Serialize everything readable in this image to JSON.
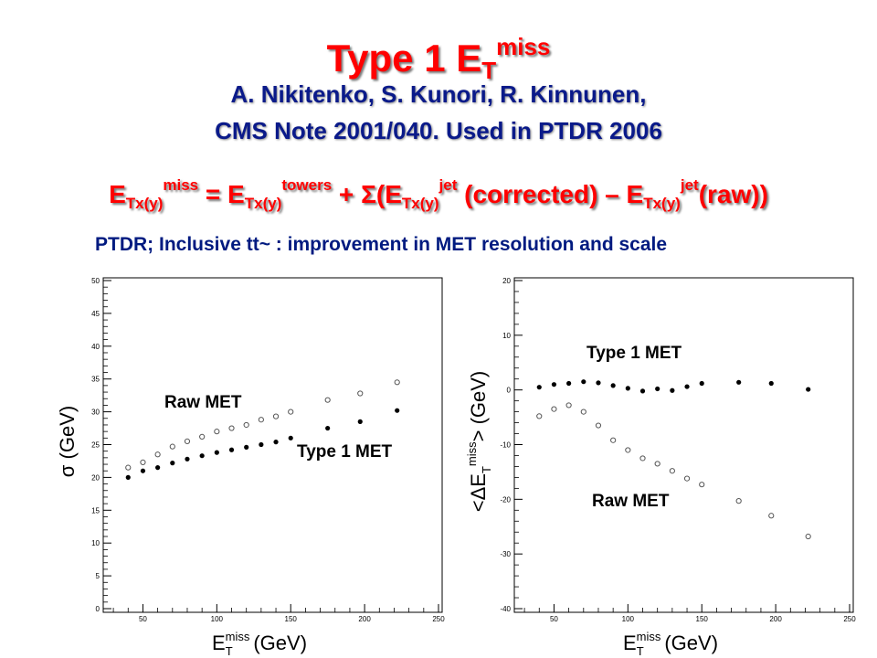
{
  "slide": {
    "title_main": "Type 1 E",
    "title_sub": "T",
    "title_sup": "miss",
    "author_line1": "A. Nikitenko, S. Kunori, R. Kinnunen,",
    "author_line2": "CMS Note 2001/040. Used in PTDR 2006",
    "formula": {
      "e": "E",
      "sub": "Tx(y)",
      "miss": "miss",
      "eq": " = E",
      "towers": "towers",
      "plus_sum": " + ",
      "sigma": "Σ",
      "open": "(E",
      "jet": "jet",
      "corrected": " (corrected) – E",
      "raw": "(raw))"
    },
    "ptdr_note": "PTDR; Inclusive tt~ : improvement in MET resolution and scale"
  },
  "chart_data": [
    {
      "type": "scatter",
      "xlabel": "E_T^miss (GeV)",
      "ylabel": "σ (GeV)",
      "xlim": [
        25,
        250
      ],
      "ylim": [
        0,
        50
      ],
      "xticks": [
        50,
        100,
        150,
        200,
        250
      ],
      "yticks": [
        0,
        5,
        10,
        15,
        20,
        25,
        30,
        35,
        40,
        45,
        50
      ],
      "series": [
        {
          "name": "Raw MET",
          "marker": "open-circle",
          "x": [
            40,
            50,
            60,
            70,
            80,
            90,
            100,
            110,
            120,
            130,
            140,
            150,
            175,
            197,
            222
          ],
          "y": [
            21.5,
            22.3,
            23.5,
            24.7,
            25.5,
            26.2,
            27.0,
            27.5,
            28.0,
            28.8,
            29.3,
            30.0,
            31.8,
            32.8,
            34.5
          ]
        },
        {
          "name": "Type 1 MET",
          "marker": "filled-circle",
          "x": [
            40,
            50,
            60,
            70,
            80,
            90,
            100,
            110,
            120,
            130,
            140,
            150,
            175,
            197,
            222
          ],
          "y": [
            20.0,
            21.0,
            21.5,
            22.2,
            22.8,
            23.3,
            23.8,
            24.2,
            24.6,
            25.0,
            25.4,
            26.0,
            27.5,
            28.5,
            30.2
          ]
        }
      ],
      "annotations": [
        {
          "text": "Raw MET"
        },
        {
          "text": "Type 1 MET"
        }
      ]
    },
    {
      "type": "scatter",
      "xlabel": "E_T^miss (GeV)",
      "ylabel": "<ΔE_T^miss> (GeV)",
      "xlim": [
        25,
        250
      ],
      "ylim": [
        -40,
        20
      ],
      "xticks": [
        50,
        100,
        150,
        200,
        250
      ],
      "yticks": [
        -40,
        -30,
        -20,
        -10,
        0,
        10,
        20
      ],
      "series": [
        {
          "name": "Type 1 MET",
          "marker": "filled-circle",
          "x": [
            40,
            50,
            60,
            70,
            80,
            90,
            100,
            110,
            120,
            130,
            140,
            150,
            175,
            197,
            222
          ],
          "y": [
            0.5,
            1.0,
            1.2,
            1.5,
            1.3,
            0.8,
            0.3,
            -0.2,
            0.2,
            -0.1,
            0.6,
            1.2,
            1.4,
            1.2,
            0.1
          ]
        },
        {
          "name": "Raw MET",
          "marker": "open-circle",
          "x": [
            40,
            50,
            60,
            70,
            80,
            90,
            100,
            110,
            120,
            130,
            140,
            150,
            175,
            197,
            222
          ],
          "y": [
            -4.8,
            -3.5,
            -2.8,
            -4.0,
            -6.5,
            -9.2,
            -11.0,
            -12.5,
            -13.5,
            -14.8,
            -16.2,
            -17.3,
            -20.3,
            -23.0,
            -26.8
          ]
        }
      ],
      "annotations": [
        {
          "text": "Type 1 MET"
        },
        {
          "text": "Raw MET"
        }
      ]
    }
  ]
}
